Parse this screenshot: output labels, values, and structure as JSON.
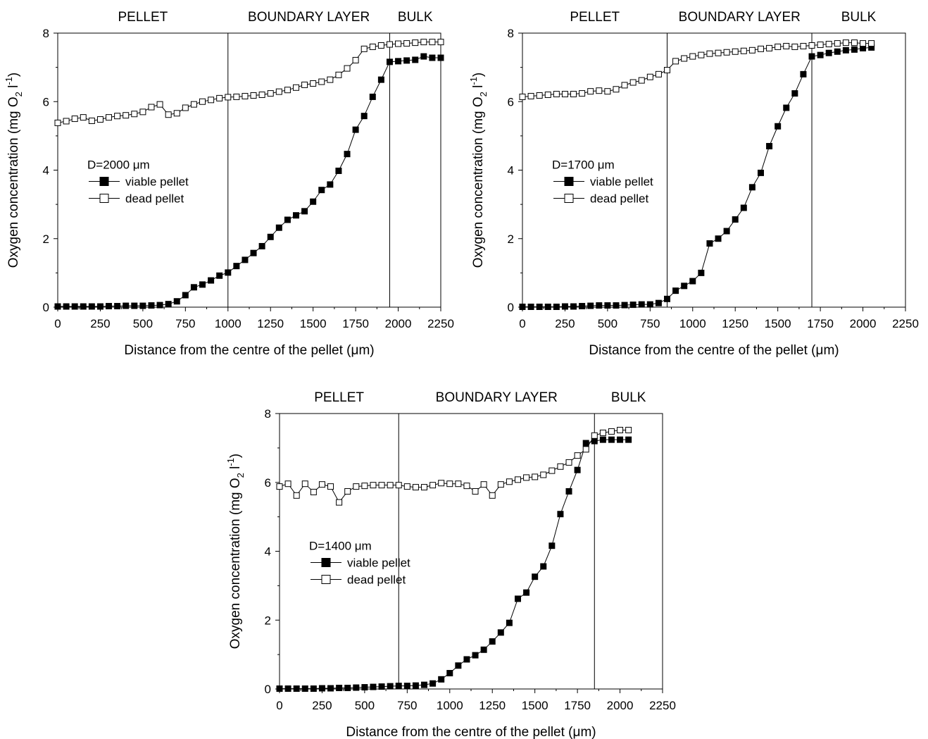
{
  "x_tick_labels": [
    "0",
    "250",
    "500",
    "750",
    "1000",
    "1250",
    "1500",
    "1750",
    "2000",
    "2250"
  ],
  "y_tick_labels": [
    "0",
    "2",
    "4",
    "6",
    "8"
  ],
  "chart_data": [
    {
      "type": "line",
      "xlabel_main": "Distance from the centre of the pellet (",
      "xlabel_unit": "μm",
      "xlabel_end": ")",
      "ylabel_main": "Oxygen concentration (mg O",
      "ylabel_sub": "2",
      "ylabel_mid": " l",
      "ylabel_sup": "-1",
      "ylabel_end": ")",
      "xlim": [
        0,
        2250
      ],
      "ylim": [
        0,
        8
      ],
      "regions": [
        "PELLET",
        "BOUNDARY LAYER",
        "BULK"
      ],
      "boundaries": [
        1000,
        1950
      ],
      "legend_title": "D=2000 μm",
      "legend_placement": "left-middle",
      "grid": false,
      "series": [
        {
          "name": "viable pellet",
          "marker": "filled-square",
          "x": [
            0,
            50,
            100,
            150,
            200,
            250,
            300,
            350,
            400,
            450,
            500,
            550,
            600,
            650,
            700,
            750,
            800,
            850,
            900,
            950,
            1000,
            1050,
            1100,
            1150,
            1200,
            1250,
            1300,
            1350,
            1400,
            1450,
            1500,
            1550,
            1600,
            1650,
            1700,
            1750,
            1800,
            1850,
            1900,
            1950,
            2000,
            2050,
            2100,
            2150,
            2200,
            2250
          ],
          "values": [
            0.02,
            0.02,
            0.02,
            0.02,
            0.02,
            0.02,
            0.03,
            0.03,
            0.04,
            0.04,
            0.04,
            0.05,
            0.06,
            0.09,
            0.17,
            0.35,
            0.58,
            0.66,
            0.78,
            0.92,
            1.01,
            1.2,
            1.38,
            1.58,
            1.78,
            2.05,
            2.32,
            2.55,
            2.68,
            2.8,
            3.08,
            3.42,
            3.58,
            3.98,
            4.47,
            5.18,
            5.58,
            6.14,
            6.64,
            7.16,
            7.18,
            7.2,
            7.22,
            7.32,
            7.28,
            7.28
          ]
        },
        {
          "name": "dead pellet",
          "marker": "open-square",
          "x": [
            0,
            50,
            100,
            150,
            200,
            250,
            300,
            350,
            400,
            450,
            500,
            550,
            600,
            650,
            700,
            750,
            800,
            850,
            900,
            950,
            1000,
            1050,
            1100,
            1150,
            1200,
            1250,
            1300,
            1350,
            1400,
            1450,
            1500,
            1550,
            1600,
            1650,
            1700,
            1750,
            1800,
            1850,
            1900,
            1950,
            2000,
            2050,
            2100,
            2150,
            2200,
            2250
          ],
          "values": [
            5.38,
            5.43,
            5.5,
            5.54,
            5.44,
            5.48,
            5.54,
            5.58,
            5.6,
            5.64,
            5.7,
            5.84,
            5.92,
            5.62,
            5.66,
            5.82,
            5.92,
            6.0,
            6.05,
            6.1,
            6.13,
            6.14,
            6.16,
            6.18,
            6.2,
            6.24,
            6.29,
            6.34,
            6.41,
            6.49,
            6.53,
            6.58,
            6.64,
            6.78,
            6.97,
            7.21,
            7.54,
            7.6,
            7.64,
            7.67,
            7.69,
            7.7,
            7.72,
            7.74,
            7.74,
            7.74
          ]
        }
      ]
    },
    {
      "type": "line",
      "xlabel_main": "Distance from the centre of the pellet (",
      "xlabel_unit": "μm",
      "xlabel_end": ")",
      "ylabel_main": "Oxygen concentration (mg O",
      "ylabel_sub": "2",
      "ylabel_mid": " l",
      "ylabel_sup": "-1",
      "ylabel_end": ")",
      "xlim": [
        0,
        2250
      ],
      "ylim": [
        0,
        8
      ],
      "regions": [
        "PELLET",
        "BOUNDARY LAYER",
        "BULK"
      ],
      "boundaries": [
        850,
        1700
      ],
      "legend_title": "D=1700 μm",
      "legend_placement": "left-middle",
      "grid": false,
      "series": [
        {
          "name": "viable pellet",
          "marker": "filled-square",
          "x": [
            0,
            50,
            100,
            150,
            200,
            250,
            300,
            350,
            400,
            450,
            500,
            550,
            600,
            650,
            700,
            750,
            800,
            850,
            900,
            950,
            1000,
            1050,
            1100,
            1150,
            1200,
            1250,
            1300,
            1350,
            1400,
            1450,
            1500,
            1550,
            1600,
            1650,
            1700,
            1750,
            1800,
            1850,
            1900,
            1950,
            2000,
            2050
          ],
          "values": [
            0.01,
            0.01,
            0.01,
            0.01,
            0.01,
            0.02,
            0.02,
            0.03,
            0.04,
            0.05,
            0.05,
            0.05,
            0.06,
            0.07,
            0.08,
            0.08,
            0.12,
            0.24,
            0.48,
            0.62,
            0.76,
            1.0,
            1.86,
            2.0,
            2.22,
            2.56,
            2.9,
            3.5,
            3.92,
            4.7,
            5.28,
            5.82,
            6.24,
            6.8,
            7.32,
            7.36,
            7.42,
            7.46,
            7.5,
            7.52,
            7.56,
            7.58
          ]
        },
        {
          "name": "dead pellet",
          "marker": "open-square",
          "x": [
            0,
            50,
            100,
            150,
            200,
            250,
            300,
            350,
            400,
            450,
            500,
            550,
            600,
            650,
            700,
            750,
            800,
            850,
            900,
            950,
            1000,
            1050,
            1100,
            1150,
            1200,
            1250,
            1300,
            1350,
            1400,
            1450,
            1500,
            1550,
            1600,
            1650,
            1700,
            1750,
            1800,
            1850,
            1900,
            1950,
            2000,
            2050
          ],
          "values": [
            6.14,
            6.16,
            6.18,
            6.2,
            6.22,
            6.22,
            6.22,
            6.24,
            6.3,
            6.32,
            6.3,
            6.36,
            6.48,
            6.56,
            6.62,
            6.72,
            6.8,
            6.92,
            7.18,
            7.26,
            7.32,
            7.36,
            7.4,
            7.42,
            7.44,
            7.46,
            7.48,
            7.5,
            7.54,
            7.56,
            7.6,
            7.62,
            7.6,
            7.62,
            7.64,
            7.66,
            7.68,
            7.7,
            7.72,
            7.72,
            7.7,
            7.7
          ]
        }
      ]
    },
    {
      "type": "line",
      "xlabel_main": "Distance from the centre of the pellet (",
      "xlabel_unit": "μm",
      "xlabel_end": ")",
      "ylabel_main": "Oxygen concentration (mg O",
      "ylabel_sub": "2",
      "ylabel_mid": " l",
      "ylabel_sup": "-1",
      "ylabel_end": ")",
      "xlim": [
        0,
        2250
      ],
      "ylim": [
        0,
        8
      ],
      "regions": [
        "PELLET",
        "BOUNDARY LAYER",
        "BULK"
      ],
      "boundaries": [
        700,
        1850
      ],
      "legend_title": "D=1400 μm",
      "legend_placement": "left-middle",
      "grid": false,
      "series": [
        {
          "name": "viable pellet",
          "marker": "filled-square",
          "x": [
            0,
            50,
            100,
            150,
            200,
            250,
            300,
            350,
            400,
            450,
            500,
            550,
            600,
            650,
            700,
            750,
            800,
            850,
            900,
            950,
            1000,
            1050,
            1100,
            1150,
            1200,
            1250,
            1300,
            1350,
            1400,
            1450,
            1500,
            1550,
            1600,
            1650,
            1700,
            1750,
            1800,
            1850,
            1900,
            1950,
            2000,
            2050
          ],
          "values": [
            0.01,
            0.01,
            0.01,
            0.01,
            0.01,
            0.02,
            0.02,
            0.03,
            0.03,
            0.04,
            0.05,
            0.06,
            0.07,
            0.08,
            0.09,
            0.09,
            0.1,
            0.12,
            0.16,
            0.28,
            0.46,
            0.68,
            0.86,
            0.98,
            1.14,
            1.38,
            1.64,
            1.92,
            2.62,
            2.8,
            3.26,
            3.56,
            4.16,
            5.08,
            5.74,
            6.36,
            7.14,
            7.2,
            7.24,
            7.24,
            7.24,
            7.24
          ]
        },
        {
          "name": "dead pellet",
          "marker": "open-square",
          "x": [
            0,
            50,
            100,
            150,
            200,
            250,
            300,
            350,
            400,
            450,
            500,
            550,
            600,
            650,
            700,
            750,
            800,
            850,
            900,
            950,
            1000,
            1050,
            1100,
            1150,
            1200,
            1250,
            1300,
            1350,
            1400,
            1450,
            1500,
            1550,
            1600,
            1650,
            1700,
            1750,
            1800,
            1850,
            1900,
            1950,
            2000,
            2050
          ],
          "values": [
            5.88,
            5.96,
            5.62,
            5.96,
            5.72,
            5.94,
            5.88,
            5.42,
            5.74,
            5.88,
            5.9,
            5.92,
            5.92,
            5.92,
            5.92,
            5.88,
            5.86,
            5.86,
            5.92,
            5.98,
            5.96,
            5.96,
            5.9,
            5.74,
            5.94,
            5.62,
            5.94,
            6.02,
            6.08,
            6.14,
            6.16,
            6.22,
            6.34,
            6.46,
            6.58,
            6.78,
            6.96,
            7.36,
            7.44,
            7.48,
            7.52,
            7.52
          ]
        }
      ]
    }
  ]
}
